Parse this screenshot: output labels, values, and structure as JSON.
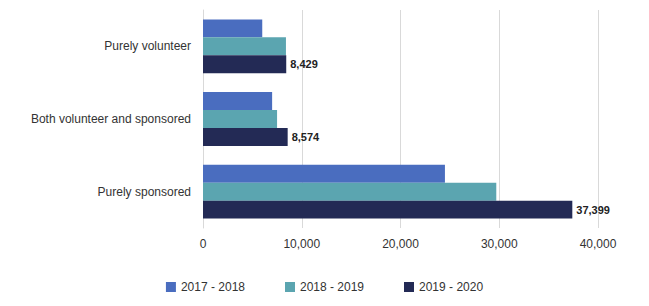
{
  "chart_data": {
    "type": "bar",
    "orientation": "horizontal",
    "categories": [
      "Purely volunteer",
      "Both volunteer and sponsored",
      "Purely sponsored"
    ],
    "series": [
      {
        "name": "2017 - 2018",
        "color": "#4a6dbf",
        "values": [
          6000,
          7000,
          24500
        ]
      },
      {
        "name": "2018 - 2019",
        "color": "#5ba5b0",
        "values": [
          8400,
          7500,
          29700
        ]
      },
      {
        "name": "2019 - 2020",
        "color": "#232a55",
        "values": [
          8429,
          8574,
          37399
        ],
        "value_labels": [
          "8,429",
          "8,574",
          "37,399"
        ]
      }
    ],
    "xlim": [
      0,
      40000
    ],
    "xticks": [
      0,
      {
        "value": 10000,
        "label": "10,000"
      },
      {
        "value": 20000,
        "label": "20,000"
      },
      {
        "value": 30000,
        "label": "30,000"
      },
      {
        "value": 40000,
        "label": "40,000"
      }
    ],
    "grid": true,
    "legend": "bottom",
    "data_labels": true
  }
}
